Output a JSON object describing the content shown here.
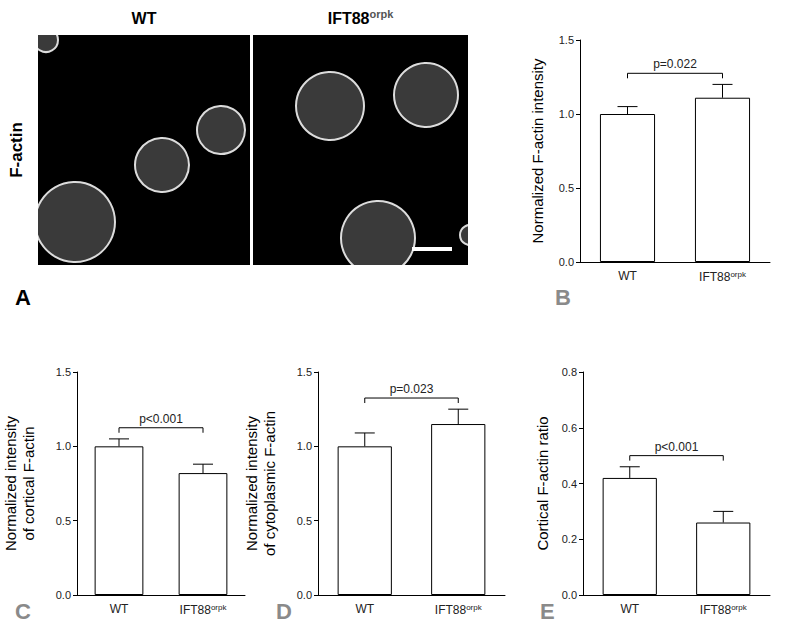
{
  "image_panel": {
    "panel": "A",
    "row_label": "F-actin",
    "columns": [
      "WT",
      "IFT88orpk"
    ]
  },
  "chart_data": [
    {
      "type": "bar",
      "panel": "B",
      "categories": [
        "WT",
        "IFT88orpk"
      ],
      "values": [
        1.0,
        1.11
      ],
      "errors": [
        0.05,
        0.09
      ],
      "ylabel": "Normalized F-actin intensity",
      "ylim": [
        0,
        1.5
      ],
      "yticks": [
        {
          "value": 0,
          "label": "0.0"
        },
        {
          "value": 0.5,
          "label": "0.5"
        },
        {
          "value": 1,
          "label": "1.0"
        },
        {
          "value": 1.5,
          "label": "1.5"
        }
      ],
      "annotations": [
        "p=0.022"
      ],
      "color": "#ffffff",
      "grid": false
    },
    {
      "type": "bar",
      "panel": "C",
      "categories": [
        "WT",
        "IFT88orpk"
      ],
      "values": [
        1.0,
        0.82
      ],
      "errors": [
        0.05,
        0.06
      ],
      "ylabel": "Normalized intensity\nof cortical F-actin",
      "ylim": [
        0,
        1.5
      ],
      "yticks": [
        {
          "value": 0,
          "label": "0.0"
        },
        {
          "value": 0.5,
          "label": "0.5"
        },
        {
          "value": 1,
          "label": "1.0"
        },
        {
          "value": 1.5,
          "label": "1.5"
        }
      ],
      "annotations": [
        "p<0.001"
      ],
      "color": "#ffffff",
      "grid": false
    },
    {
      "type": "bar",
      "panel": "D",
      "categories": [
        "WT",
        "IFT88orpk"
      ],
      "values": [
        1.0,
        1.15
      ],
      "errors": [
        0.09,
        0.1
      ],
      "ylabel": "Normalized intensity\nof cytoplasmic F-actin",
      "ylim": [
        0,
        1.5
      ],
      "yticks": [
        {
          "value": 0,
          "label": "0.0"
        },
        {
          "value": 0.5,
          "label": "0.5"
        },
        {
          "value": 1,
          "label": "1.0"
        },
        {
          "value": 1.5,
          "label": "1.5"
        }
      ],
      "annotations": [
        "p=0.023"
      ],
      "color": "#ffffff",
      "grid": false
    },
    {
      "type": "bar",
      "panel": "E",
      "categories": [
        "WT",
        "IFT88orpk"
      ],
      "values": [
        0.42,
        0.26
      ],
      "errors": [
        0.04,
        0.04
      ],
      "ylabel": "Cortical F-actin ratio",
      "ylim": [
        0,
        0.8
      ],
      "yticks": [
        {
          "value": 0,
          "label": "0.0"
        },
        {
          "value": 0.2,
          "label": "0.2"
        },
        {
          "value": 0.4,
          "label": "0.4"
        },
        {
          "value": 0.6,
          "label": "0.6"
        },
        {
          "value": 0.8,
          "label": "0.8"
        }
      ],
      "annotations": [
        "p<0.001"
      ],
      "color": "#ffffff",
      "grid": false
    }
  ]
}
